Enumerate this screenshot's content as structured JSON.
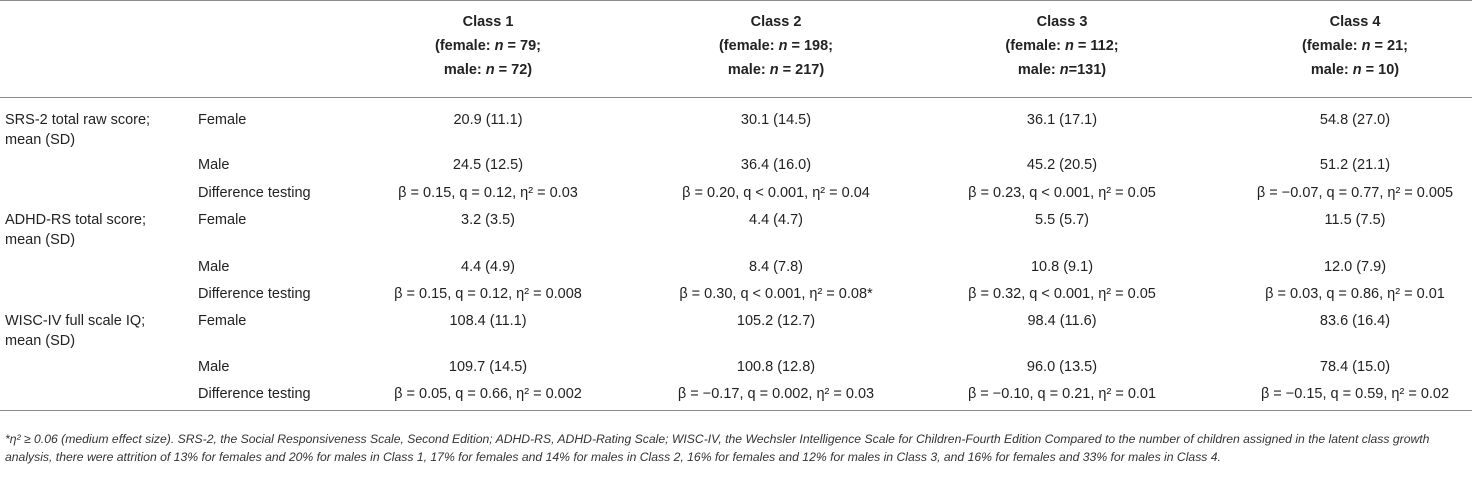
{
  "header": {
    "columns": [
      {
        "title": "Class 1",
        "female": "(female: n = 79;",
        "male": "male: n = 72)"
      },
      {
        "title": "Class 2",
        "female": "(female: n = 198;",
        "male": "male: n = 217)"
      },
      {
        "title": "Class 3",
        "female": "(female: n = 112;",
        "male": "male: n=131)"
      },
      {
        "title": "Class 4",
        "female": "(female: n = 21;",
        "male": "male: n = 10)"
      }
    ]
  },
  "rows": [
    {
      "outcome": "SRS-2 total raw score; mean (SD)",
      "sub": "Female",
      "values": [
        "20.9 (11.1)",
        "30.1 (14.5)",
        "36.1 (17.1)",
        "54.8 (27.0)"
      ]
    },
    {
      "outcome": "",
      "sub": "Male",
      "values": [
        "24.5 (12.5)",
        "36.4 (16.0)",
        "45.2 (20.5)",
        "51.2 (21.1)"
      ]
    },
    {
      "outcome": "",
      "sub": "Difference testing",
      "values": [
        "β = 0.15, q = 0.12, η² = 0.03",
        "β = 0.20, q < 0.001, η² = 0.04",
        "β = 0.23, q < 0.001, η² = 0.05",
        "β = −0.07, q = 0.77, η² = 0.005"
      ]
    },
    {
      "outcome": "ADHD-RS total score; mean (SD)",
      "sub": "Female",
      "values": [
        "3.2 (3.5)",
        "4.4 (4.7)",
        "5.5 (5.7)",
        "11.5 (7.5)"
      ]
    },
    {
      "outcome": "",
      "sub": "Male",
      "values": [
        "4.4 (4.9)",
        "8.4 (7.8)",
        "10.8 (9.1)",
        "12.0 (7.9)"
      ]
    },
    {
      "outcome": "",
      "sub": "Difference testing",
      "values": [
        "β = 0.15, q = 0.12, η² = 0.008",
        "β = 0.30, q < 0.001, η² = 0.08*",
        "β = 0.32, q < 0.001, η² = 0.05",
        "β = 0.03, q = 0.86, η² = 0.01"
      ]
    },
    {
      "outcome": "WISC-IV full scale IQ; mean (SD)",
      "sub": "Female",
      "values": [
        "108.4 (11.1)",
        "105.2 (12.7)",
        "98.4 (11.6)",
        "83.6 (16.4)"
      ]
    },
    {
      "outcome": "",
      "sub": "Male",
      "values": [
        "109.7 (14.5)",
        "100.8 (12.8)",
        "96.0 (13.5)",
        "78.4 (15.0)"
      ]
    },
    {
      "outcome": "",
      "sub": "Difference testing",
      "values": [
        "β = 0.05, q = 0.66, η² = 0.002",
        "β = −0.17, q = 0.002, η² = 0.03",
        "β = −0.10, q = 0.21, η² = 0.01",
        "β = −0.15, q = 0.59, η² = 0.02"
      ]
    }
  ],
  "footnote": "*η² ≥ 0.06 (medium effect size). SRS-2, the Social Responsiveness Scale, Second Edition; ADHD-RS, ADHD-Rating Scale; WISC-IV, the Wechsler Intelligence Scale for Children-Fourth Edition Compared to the number of children assigned in the latent class growth analysis, there were attrition of 13% for females and 20% for males in Class 1, 17% for females and 14% for males in Class 2, 16% for females and 12% for males in Class 3, and 16% for females and 33% for males in Class 4."
}
